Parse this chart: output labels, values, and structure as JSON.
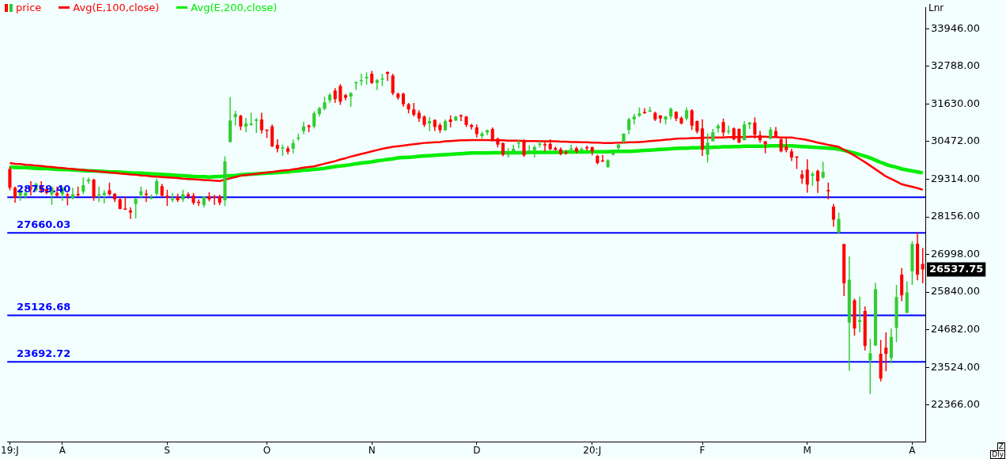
{
  "chart_data": {
    "type": "candlestick",
    "categories": [
      "19:J",
      null,
      null,
      null,
      null,
      null,
      null,
      null,
      null,
      null,
      "A",
      null,
      null,
      null,
      null,
      null,
      null,
      null,
      null,
      null,
      null,
      null,
      null,
      null,
      null,
      null,
      null,
      null,
      null,
      null,
      "S",
      null,
      null,
      null,
      null,
      null,
      null,
      null,
      null,
      null,
      null,
      null,
      null,
      null,
      null,
      null,
      null,
      null,
      null,
      "O",
      null,
      null,
      null,
      null,
      null,
      null,
      null,
      null,
      null,
      null,
      null,
      null,
      null,
      null,
      null,
      null,
      null,
      null,
      null,
      "N",
      null,
      null,
      null,
      null,
      null,
      null,
      null,
      null,
      null,
      null,
      null,
      null,
      null,
      null,
      null,
      null,
      null,
      null,
      null,
      "D",
      null,
      null,
      null,
      null,
      null,
      null,
      null,
      null,
      null,
      null,
      null,
      null,
      null,
      null,
      null,
      null,
      null,
      null,
      null,
      null,
      null,
      "20:J",
      null,
      null,
      null,
      null,
      null,
      null,
      null,
      null,
      null,
      null,
      null,
      null,
      null,
      null,
      null,
      null,
      null,
      null,
      null,
      null,
      "F",
      null,
      null,
      null,
      null,
      null,
      null,
      null,
      null,
      null,
      null,
      null,
      null,
      null,
      null,
      null,
      null,
      null,
      null,
      null,
      "M",
      null,
      null,
      null,
      null,
      null,
      null,
      null,
      null,
      null,
      null,
      null,
      null,
      null,
      null,
      null,
      null,
      null,
      null,
      null,
      "A",
      null,
      null
    ],
    "series": [
      {
        "name": "price",
        "colors": [
          "#ff0000",
          "#ff0000",
          "#33cc33",
          "#33cc33",
          "#ff0000",
          "#33cc33",
          "#ff0000",
          "#ff0000",
          "#33cc33",
          "#ff0000",
          "#33cc33",
          "#ff0000",
          "#33cc33",
          "#ff0000",
          "#33cc33",
          "#33cc33",
          "#ff0000",
          "#33cc33",
          "#33cc33",
          "#ff0000",
          "#ff0000",
          "#ff0000",
          "#ff0000",
          "#ff0000",
          "#33cc33",
          "#33cc33",
          "#ff0000",
          "#33cc33",
          "#33cc33",
          "#ff0000",
          "#ff0000",
          "#33cc33",
          "#ff0000",
          "#33cc33",
          "#ff0000",
          "#ff0000",
          "#ff0000",
          "#33cc33",
          "#ff0000",
          "#ff0000",
          "#ff0000",
          "#33cc33",
          "#33cc33",
          "#33cc33",
          "#ff0000",
          "#33cc33",
          "#33cc33",
          "#33cc33",
          "#ff0000",
          "#ff0000",
          "#ff0000",
          "#ff0000",
          "#33cc33",
          "#ff0000",
          "#33cc33",
          "#33cc33",
          "#33cc33",
          "#ff0000",
          "#33cc33",
          "#33cc33",
          "#33cc33",
          "#33cc33",
          "#ff0000",
          "#ff0000",
          "#ff0000",
          "#33cc33",
          "#33cc33",
          "#33cc33",
          "#33cc33",
          "#ff0000",
          "#33cc33",
          "#33cc33",
          "#ff0000",
          "#ff0000",
          "#ff0000",
          "#ff0000",
          "#ff0000",
          "#ff0000",
          "#ff0000",
          "#ff0000",
          "#33cc33",
          "#ff0000",
          "#ff0000",
          "#33cc33",
          "#ff0000",
          "#33cc33",
          "#ff0000",
          "#ff0000",
          "#ff0000",
          "#ff0000",
          "#33cc33",
          "#33cc33",
          "#ff0000",
          "#ff0000",
          "#ff0000",
          "#33cc33",
          "#33cc33",
          "#33cc33",
          "#ff0000",
          "#33cc33",
          "#33cc33",
          "#33cc33",
          "#ff0000",
          "#ff0000",
          "#ff0000",
          "#ff0000",
          "#ff0000",
          "#33cc33",
          "#ff0000",
          "#33cc33",
          "#ff0000",
          "#ff0000",
          "#ff0000",
          "#ff0000",
          "#33cc33",
          "#33cc33",
          "#33cc33",
          "#33cc33",
          "#33cc33",
          "#33cc33",
          "#33cc33",
          "#ff0000",
          "#33cc33",
          "#ff0000",
          "#ff0000",
          "#33cc33",
          "#33cc33",
          "#ff0000",
          "#ff0000",
          "#33cc33",
          "#ff0000",
          "#ff0000",
          "#ff0000",
          "#33cc33",
          "#33cc33",
          "#33cc33",
          "#ff0000",
          "#33cc33",
          "#ff0000",
          "#ff0000",
          "#33cc33",
          "#33cc33",
          "#ff0000",
          "#ff0000",
          "#ff0000",
          "#33cc33",
          "#ff0000",
          "#ff0000",
          "#ff0000",
          "#ff0000",
          "#ff0000",
          "#ff0000",
          "#ff0000",
          "#33cc33",
          "#ff0000",
          "#33cc33",
          "#ff0000",
          "#ff0000",
          "#33cc33",
          "#ff0000",
          "#33cc33",
          "#ff0000",
          "#33cc33",
          "#ff0000",
          "#33cc33",
          "#33cc33",
          "#ff0000",
          "#ff0000",
          "#33cc33",
          "#33cc33",
          "#ff0000",
          "#33cc33",
          "#33cc33",
          "#ff0000",
          "#ff0000"
        ],
        "ohlc": [
          [
            29630,
            29700,
            28970,
            29050
          ],
          [
            29050,
            29090,
            28590,
            28750
          ],
          [
            28810,
            29010,
            28650,
            28970
          ],
          [
            28810,
            28930,
            28730,
            28890
          ],
          [
            29050,
            29250,
            28810,
            29020
          ],
          [
            28970,
            29210,
            28930,
            29170
          ],
          [
            29130,
            29250,
            28890,
            28970
          ],
          [
            29010,
            29090,
            28850,
            28890
          ],
          [
            28850,
            29090,
            28530,
            29050
          ],
          [
            28890,
            29090,
            28770,
            28810
          ],
          [
            28850,
            29090,
            28650,
            29050
          ],
          [
            28850,
            28890,
            28510,
            28810
          ],
          [
            28730,
            29050,
            28690,
            28850
          ],
          [
            28860,
            29090,
            28770,
            28820
          ],
          [
            28930,
            29370,
            28850,
            29130
          ],
          [
            29250,
            29370,
            29170,
            29300
          ],
          [
            29300,
            29330,
            28650,
            28750
          ],
          [
            28810,
            29090,
            28610,
            28850
          ],
          [
            28830,
            28970,
            28570,
            28890
          ],
          [
            28970,
            29210,
            28810,
            28850
          ],
          [
            28860,
            28890,
            28610,
            28690
          ],
          [
            28700,
            28730,
            28390,
            28400
          ],
          [
            28410,
            28770,
            28370,
            28400
          ],
          [
            28350,
            28450,
            28090,
            28290
          ],
          [
            28550,
            28730,
            28110,
            28710
          ],
          [
            28830,
            29090,
            28730,
            28950
          ],
          [
            28870,
            28990,
            28610,
            28830
          ],
          [
            28730,
            28850,
            28690,
            28750
          ],
          [
            28870,
            29330,
            28810,
            29260
          ],
          [
            29100,
            29170,
            28770,
            28810
          ],
          [
            28810,
            28990,
            28490,
            28740
          ],
          [
            28700,
            28890,
            28610,
            28710
          ],
          [
            28770,
            28870,
            28610,
            28670
          ],
          [
            28690,
            28990,
            28610,
            28850
          ],
          [
            28850,
            28910,
            28710,
            28790
          ],
          [
            28810,
            28890,
            28530,
            28590
          ],
          [
            28620,
            28690,
            28490,
            28600
          ],
          [
            28520,
            28790,
            28450,
            28770
          ],
          [
            28790,
            28910,
            28630,
            28690
          ],
          [
            28780,
            28830,
            28520,
            28760
          ],
          [
            28790,
            28830,
            28520,
            28590
          ],
          [
            28670,
            30020,
            28490,
            29860
          ],
          [
            30460,
            31840,
            30450,
            31120
          ],
          [
            31220,
            31420,
            30960,
            31320
          ],
          [
            31270,
            31300,
            30820,
            30940
          ],
          [
            30940,
            31200,
            30760,
            31030
          ],
          [
            30990,
            31360,
            30960,
            31030
          ],
          [
            31110,
            31200,
            30740,
            31150
          ],
          [
            31150,
            31360,
            30720,
            30820
          ],
          [
            30840,
            30840,
            30580,
            30820
          ],
          [
            30940,
            31000,
            30300,
            30330
          ],
          [
            30370,
            30540,
            30140,
            30250
          ],
          [
            30270,
            30380,
            30030,
            30290
          ],
          [
            30260,
            30330,
            30080,
            30160
          ],
          [
            30250,
            30530,
            30110,
            30430
          ],
          [
            30580,
            30720,
            30500,
            30600
          ],
          [
            30790,
            31080,
            30700,
            30940
          ],
          [
            30960,
            31000,
            30760,
            30920
          ],
          [
            30940,
            31400,
            30880,
            31340
          ],
          [
            31320,
            31540,
            31240,
            31500
          ],
          [
            31480,
            31860,
            31440,
            31680
          ],
          [
            31740,
            31960,
            31660,
            31910
          ],
          [
            32040,
            32120,
            31660,
            31780
          ],
          [
            32180,
            32240,
            31600,
            31700
          ],
          [
            31900,
            31940,
            31740,
            31820
          ],
          [
            31860,
            32000,
            31540,
            31960
          ],
          [
            32280,
            32320,
            32060,
            32300
          ],
          [
            32340,
            32560,
            32200,
            32360
          ],
          [
            32420,
            32600,
            32220,
            32460
          ],
          [
            32560,
            32650,
            32250,
            32280
          ],
          [
            32280,
            32400,
            32060,
            32360
          ],
          [
            32380,
            32560,
            32180,
            32420
          ],
          [
            32610,
            32630,
            32340,
            32560
          ],
          [
            32500,
            32560,
            31900,
            31960
          ],
          [
            31940,
            31980,
            31760,
            31820
          ],
          [
            31940,
            31980,
            31540,
            31620
          ],
          [
            31620,
            31660,
            31340,
            31460
          ],
          [
            31460,
            31660,
            31240,
            31300
          ],
          [
            31360,
            31440,
            31080,
            31180
          ],
          [
            31240,
            31280,
            30920,
            30990
          ],
          [
            31030,
            31230,
            30790,
            31100
          ],
          [
            31140,
            31160,
            30800,
            30920
          ],
          [
            30980,
            31040,
            30740,
            30820
          ],
          [
            30820,
            31150,
            30800,
            31100
          ],
          [
            31150,
            31280,
            30910,
            31080
          ],
          [
            31120,
            31260,
            31100,
            31240
          ],
          [
            31280,
            31310,
            31100,
            31260
          ],
          [
            31240,
            31260,
            30920,
            30980
          ],
          [
            30980,
            31020,
            30840,
            30920
          ],
          [
            30910,
            31000,
            30600,
            30700
          ],
          [
            30640,
            30780,
            30560,
            30720
          ],
          [
            30750,
            30840,
            30670,
            30820
          ],
          [
            30860,
            30910,
            30480,
            30540
          ],
          [
            30560,
            30600,
            30290,
            30380
          ],
          [
            30430,
            30440,
            30020,
            30070
          ],
          [
            30070,
            30270,
            29980,
            30140
          ],
          [
            30170,
            30370,
            30110,
            30250
          ],
          [
            30430,
            30520,
            30260,
            30450
          ],
          [
            30520,
            30540,
            30000,
            30050
          ],
          [
            30150,
            30360,
            30080,
            30190
          ],
          [
            30210,
            30360,
            29980,
            30300
          ],
          [
            30370,
            30480,
            30290,
            30410
          ],
          [
            30390,
            30460,
            30170,
            30380
          ],
          [
            30400,
            30540,
            30210,
            30240
          ],
          [
            30270,
            30320,
            30190,
            30220
          ],
          [
            30240,
            30290,
            30050,
            30090
          ],
          [
            30140,
            30210,
            30070,
            30120
          ],
          [
            30240,
            30380,
            30170,
            30260
          ],
          [
            30270,
            30320,
            30110,
            30170
          ],
          [
            30240,
            30290,
            30190,
            30250
          ],
          [
            30300,
            30350,
            30200,
            30280
          ],
          [
            30300,
            30320,
            30050,
            30170
          ],
          [
            30030,
            30070,
            29770,
            29810
          ],
          [
            29890,
            30060,
            29850,
            29880
          ],
          [
            29690,
            29930,
            29660,
            29900
          ],
          [
            30060,
            30190,
            30050,
            30140
          ],
          [
            30270,
            30400,
            30190,
            30380
          ],
          [
            30460,
            30720,
            30420,
            30720
          ],
          [
            30830,
            31200,
            30700,
            31160
          ],
          [
            31160,
            31320,
            31000,
            31240
          ],
          [
            31270,
            31520,
            31230,
            31340
          ],
          [
            31380,
            31500,
            31320,
            31370
          ],
          [
            31390,
            31540,
            31380,
            31430
          ],
          [
            31360,
            31390,
            31100,
            31150
          ],
          [
            31280,
            31280,
            31040,
            31180
          ],
          [
            31150,
            31260,
            31000,
            31240
          ],
          [
            31240,
            31520,
            31160,
            31480
          ],
          [
            31390,
            31400,
            31100,
            31180
          ],
          [
            31200,
            31240,
            31000,
            31030
          ],
          [
            31180,
            31520,
            31120,
            31430
          ],
          [
            31430,
            31470,
            30830,
            30960
          ],
          [
            31100,
            31120,
            30720,
            30780
          ],
          [
            30880,
            31160,
            30030,
            30220
          ],
          [
            30070,
            30720,
            29830,
            30440
          ],
          [
            30480,
            30860,
            30480,
            30760
          ],
          [
            30880,
            31020,
            30750,
            30960
          ],
          [
            31070,
            31180,
            30620,
            30750
          ],
          [
            30790,
            30960,
            30700,
            30810
          ],
          [
            30880,
            30910,
            30510,
            30540
          ],
          [
            30860,
            30880,
            30430,
            30440
          ],
          [
            30510,
            31100,
            30510,
            31000
          ],
          [
            31000,
            31070,
            30860,
            31060
          ],
          [
            31060,
            31220,
            30560,
            30680
          ],
          [
            30670,
            30800,
            30440,
            30510
          ],
          [
            30480,
            30480,
            30110,
            30390
          ],
          [
            30560,
            30920,
            30540,
            30840
          ],
          [
            30800,
            30920,
            30620,
            30640
          ],
          [
            30540,
            30590,
            30140,
            30170
          ],
          [
            30320,
            30590,
            30140,
            30210
          ],
          [
            30170,
            30250,
            29870,
            29980
          ],
          [
            30010,
            30020,
            29630,
            29990
          ],
          [
            29460,
            29590,
            29170,
            29340
          ],
          [
            29610,
            29930,
            28900,
            29150
          ],
          [
            29420,
            29540,
            29110,
            29480
          ],
          [
            29570,
            29610,
            28890,
            29250
          ],
          [
            29370,
            29850,
            29330,
            29540
          ],
          [
            28980,
            29210,
            28690,
            28960
          ],
          [
            28470,
            28550,
            27850,
            28070
          ],
          [
            27680,
            28290,
            27640,
            28090
          ],
          [
            27320,
            27320,
            25720,
            26110
          ],
          [
            24900,
            26940,
            23420,
            26220
          ],
          [
            25590,
            25640,
            24500,
            24720
          ],
          [
            24920,
            25700,
            24600,
            24980
          ],
          [
            25260,
            25400,
            24040,
            24180
          ],
          [
            23740,
            24400,
            22710,
            23960
          ],
          [
            24200,
            26120,
            24180,
            25930
          ],
          [
            23940,
            24370,
            23090,
            23180
          ],
          [
            24130,
            24600,
            23410,
            23940
          ],
          [
            23810,
            24720,
            23650,
            24460
          ],
          [
            24740,
            26060,
            24300,
            25690
          ],
          [
            26380,
            26580,
            25560,
            25740
          ],
          [
            25210,
            26170,
            25180,
            25830
          ],
          [
            26480,
            27410,
            26060,
            27320
          ],
          [
            27330,
            27670,
            26200,
            26380
          ],
          [
            26710,
            27200,
            26110,
            26537.75
          ]
        ]
      },
      {
        "name": "Avg(E,100,close)",
        "type": "line",
        "color": "#ff0000",
        "values": [
          29810,
          29790,
          29780,
          29760,
          29750,
          29730,
          29720,
          29700,
          29690,
          29670,
          29660,
          29640,
          29630,
          29610,
          29600,
          29580,
          29570,
          29550,
          29540,
          29520,
          29510,
          29490,
          29480,
          29460,
          29450,
          29430,
          29420,
          29400,
          29390,
          29380,
          29370,
          29360,
          29350,
          29330,
          29320,
          29310,
          29300,
          29290,
          29280,
          29270,
          29260,
          29300,
          29340,
          29380,
          29420,
          29440,
          29460,
          29480,
          29500,
          29520,
          29540,
          29560,
          29580,
          29590,
          29620,
          29640,
          29670,
          29690,
          29710,
          29750,
          29790,
          29830,
          29870,
          29920,
          29960,
          30010,
          30050,
          30090,
          30130,
          30170,
          30210,
          30250,
          30280,
          30310,
          30330,
          30350,
          30370,
          30390,
          30410,
          30430,
          30440,
          30450,
          30460,
          30480,
          30490,
          30500,
          30510,
          30510,
          30520,
          30520,
          30520,
          30520,
          30510,
          30510,
          30510,
          30500,
          30500,
          30500,
          30490,
          30490,
          30490,
          30480,
          30480,
          30480,
          30480,
          30470,
          30470,
          30460,
          30460,
          30450,
          30450,
          30440,
          30440,
          30430,
          30430,
          30430,
          30440,
          30440,
          30450,
          30450,
          30460,
          30470,
          30490,
          30500,
          30510,
          30530,
          30540,
          30560,
          30570,
          30570,
          30580,
          30580,
          30590,
          30590,
          30600,
          30600,
          30600,
          30610,
          30610,
          30610,
          30610,
          30620,
          30620,
          30620,
          30620,
          30610,
          30610,
          30600,
          30600,
          30600,
          30570,
          30550,
          30520,
          30480,
          30440,
          30410,
          30370,
          30340,
          30310,
          30220,
          30130,
          30040,
          29940,
          29840,
          29730,
          29620,
          29510,
          29400,
          29320,
          29240,
          29160,
          29120,
          29080,
          29040,
          28990
        ]
      },
      {
        "name": "Avg(E,200,close)",
        "type": "line",
        "color": "#00ee00",
        "values": [
          29690,
          29680,
          29670,
          29670,
          29660,
          29650,
          29640,
          29640,
          29630,
          29620,
          29610,
          29610,
          29600,
          29590,
          29580,
          29570,
          29570,
          29560,
          29550,
          29540,
          29540,
          29530,
          29520,
          29510,
          29500,
          29500,
          29490,
          29480,
          29470,
          29460,
          29450,
          29440,
          29430,
          29420,
          29410,
          29400,
          29390,
          29390,
          29380,
          29390,
          29400,
          29410,
          29420,
          29430,
          29450,
          29460,
          29470,
          29480,
          29490,
          29500,
          29510,
          29520,
          29530,
          29540,
          29560,
          29570,
          29590,
          29600,
          29620,
          29630,
          29650,
          29680,
          29700,
          29720,
          29740,
          29760,
          29790,
          29810,
          29830,
          29850,
          29880,
          29900,
          29920,
          29940,
          29970,
          29980,
          29990,
          30000,
          30020,
          30030,
          30040,
          30050,
          30060,
          30070,
          30080,
          30090,
          30100,
          30110,
          30120,
          30120,
          30120,
          30120,
          30130,
          30130,
          30130,
          30130,
          30130,
          30130,
          30130,
          30140,
          30140,
          30140,
          30140,
          30140,
          30140,
          30140,
          30150,
          30150,
          30150,
          30150,
          30150,
          30160,
          30160,
          30160,
          30160,
          30170,
          30170,
          30170,
          30170,
          30180,
          30190,
          30200,
          30210,
          30220,
          30230,
          30240,
          30250,
          30260,
          30270,
          30270,
          30280,
          30280,
          30290,
          30290,
          30300,
          30300,
          30310,
          30310,
          30320,
          30320,
          30330,
          30330,
          30330,
          30330,
          30330,
          30340,
          30340,
          30340,
          30340,
          30340,
          30330,
          30320,
          30310,
          30300,
          30290,
          30280,
          30270,
          30260,
          30240,
          30200,
          30160,
          30120,
          30070,
          30020,
          29970,
          29900,
          29830,
          29770,
          29720,
          29680,
          29630,
          29600,
          29570,
          29540,
          29510
        ]
      }
    ],
    "ylim": [
      21240,
      34590
    ],
    "yticks": [
      {
        "value": 22366,
        "label": "22366.00"
      },
      {
        "value": 23524,
        "label": "23524.00"
      },
      {
        "value": 24682,
        "label": "24682.00"
      },
      {
        "value": 25840,
        "label": "25840.00"
      },
      {
        "value": 26998,
        "label": "26998.00"
      },
      {
        "value": 28156,
        "label": "28156.00"
      },
      {
        "value": 29314,
        "label": "29314.00"
      },
      {
        "value": 30472,
        "label": "30472.00"
      },
      {
        "value": 31630,
        "label": "31630.00"
      },
      {
        "value": 32788,
        "label": "32788.00"
      },
      {
        "value": 33946,
        "label": "33946.00"
      }
    ],
    "ref_lines": [
      {
        "axis": "y",
        "value": 28759.4,
        "label": "28759.40",
        "color": "#0000ff"
      },
      {
        "axis": "y",
        "value": 27660.03,
        "label": "27660.03",
        "color": "#0000ff"
      },
      {
        "axis": "y",
        "value": 25126.68,
        "label": "25126.68",
        "color": "#0000ff"
      },
      {
        "axis": "y",
        "value": 23692.72,
        "label": "23692.72",
        "color": "#0000ff"
      }
    ],
    "annotations": [
      "Lnr",
      "Z",
      "Dly",
      "26537.75"
    ],
    "legend": "top left",
    "grid": false,
    "marker": "none",
    "line_style": "solid"
  }
}
